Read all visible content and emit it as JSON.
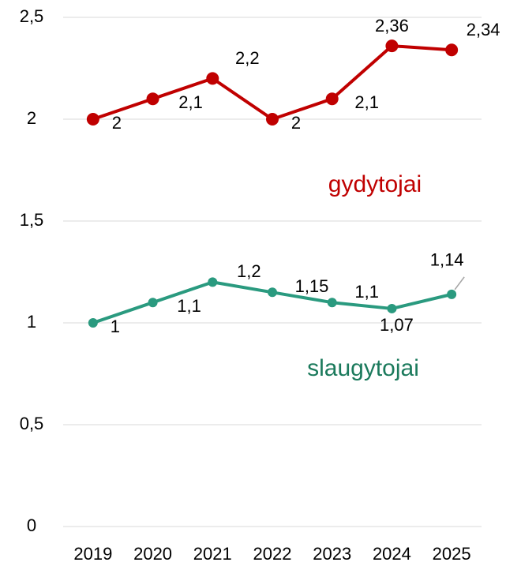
{
  "chart_data": {
    "type": "line",
    "categories": [
      "2019",
      "2020",
      "2021",
      "2022",
      "2023",
      "2024",
      "2025"
    ],
    "series": [
      {
        "name": "gydytojai",
        "color": "#c00000",
        "values": [
          2,
          2.1,
          2.2,
          2,
          2.1,
          2.36,
          2.34
        ],
        "value_labels": [
          "2",
          "2,1",
          "2,2",
          "2",
          "2,1",
          "2,36",
          "2,34"
        ]
      },
      {
        "name": "slaugytojai",
        "color": "#2a9a7f",
        "values": [
          1,
          1.1,
          1.2,
          1.15,
          1.1,
          1.07,
          1.14
        ],
        "value_labels": [
          "1",
          "1,1",
          "1,2",
          "1,15",
          "1,1",
          "1,07",
          "1,14"
        ]
      }
    ],
    "ylim": [
      0,
      2.5
    ],
    "yticks": [
      0,
      {
        "value": 0.5,
        "label": "0,5"
      },
      1,
      {
        "value": 1.5,
        "label": "1,5"
      },
      2,
      {
        "value": 2.5,
        "label": "2,5"
      }
    ],
    "grid": true
  }
}
